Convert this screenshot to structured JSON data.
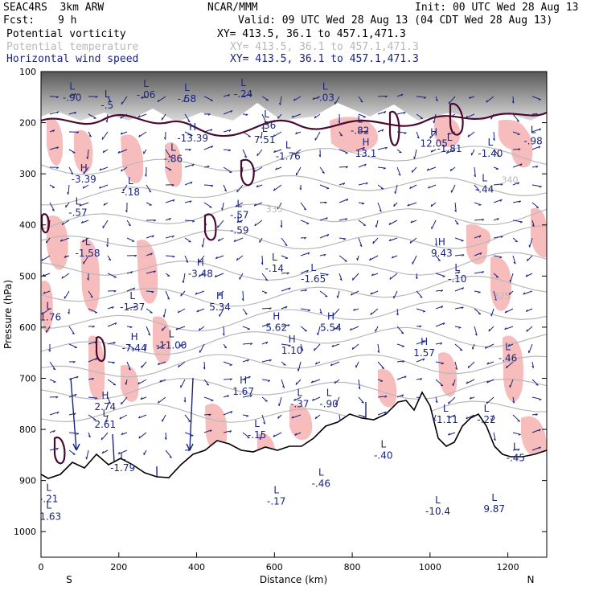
{
  "header": {
    "model": "SEAC4RS  3km ARW",
    "center": "NCAR/MMM",
    "init": "Init: 00 UTC Wed 28 Aug 13",
    "fcst_label": "Fcst:",
    "fcst_value": "9 h",
    "valid": "Valid: 09 UTC Wed 28 Aug 13 (04 CDT Wed 28 Aug 13)"
  },
  "fields": [
    {
      "name": "Potential vorticity",
      "xy": "XY= 413.5, 36.1 to 457.1,471.3",
      "color": "#000000"
    },
    {
      "name": "Potential temperature",
      "xy": "XY= 413.5, 36.1 to 457.1,471.3",
      "color": "#b8b8b8"
    },
    {
      "name": "Horizontal wind speed",
      "xy": "XY= 413.5, 36.1 to 457.1,471.3",
      "color": "#1a237e"
    }
  ],
  "chart_data": {
    "type": "heatmap",
    "xlabel": "Distance (km)",
    "ylabel": "Pressure (hPa)",
    "xlim": [
      0,
      1300
    ],
    "ylim": [
      1050,
      100
    ],
    "x_ticks": [
      0,
      200,
      400,
      600,
      800,
      1000,
      1200
    ],
    "x_tick_labels": [
      "0",
      "200",
      "400",
      "600",
      "800",
      "1000",
      "1200"
    ],
    "y_ticks": [
      100,
      200,
      300,
      400,
      500,
      600,
      700,
      800,
      900,
      1000
    ],
    "y_tick_labels": [
      "100",
      "200",
      "300",
      "400",
      "500",
      "600",
      "700",
      "800",
      "900",
      "1000"
    ],
    "x_end_labels": {
      "left": "S",
      "right": "N"
    },
    "colors": {
      "pv_shade": "#f7bcbc",
      "theta": "#b8b8b8",
      "wind": "#1a237e",
      "pv_contour": "#4a0a30",
      "terrain": "#000000"
    },
    "theta_labels": [
      {
        "x": 1205,
        "p": 318,
        "text": "340"
      },
      {
        "x": 600,
        "p": 375,
        "text": "335"
      },
      {
        "x": 1185,
        "p": 545,
        "text": "325"
      }
    ],
    "extrema": [
      {
        "type": "L",
        "x": 80,
        "p": 135,
        "value": "-.90"
      },
      {
        "type": "L",
        "x": 170,
        "p": 150,
        "value": "-.5"
      },
      {
        "type": "L",
        "x": 270,
        "p": 130,
        "value": "-.06"
      },
      {
        "type": "L",
        "x": 375,
        "p": 138,
        "value": "-.58"
      },
      {
        "type": "L",
        "x": 520,
        "p": 128,
        "value": "-.24"
      },
      {
        "type": "L",
        "x": 730,
        "p": 135,
        "value": "-.03"
      },
      {
        "type": "L",
        "x": 580,
        "p": 190,
        "value": "-.36"
      },
      {
        "type": "L",
        "x": 575,
        "p": 218,
        "value": "7.51"
      },
      {
        "type": "H",
        "x": 390,
        "p": 215,
        "value": "-13.39"
      },
      {
        "type": "L",
        "x": 340,
        "p": 255,
        "value": "-.86"
      },
      {
        "type": "L",
        "x": 635,
        "p": 250,
        "value": "-1.76"
      },
      {
        "type": "L",
        "x": 820,
        "p": 200,
        "value": "-.82"
      },
      {
        "type": "H",
        "x": 835,
        "p": 245,
        "value": "13.1"
      },
      {
        "type": "H",
        "x": 1010,
        "p": 225,
        "value": "12.05"
      },
      {
        "type": "L",
        "x": 1050,
        "p": 235,
        "value": "-1.81"
      },
      {
        "type": "L",
        "x": 1155,
        "p": 245,
        "value": "-1.40"
      },
      {
        "type": "L",
        "x": 1265,
        "p": 220,
        "value": "-.98"
      },
      {
        "type": "H",
        "x": 110,
        "p": 295,
        "value": "-3.39"
      },
      {
        "type": "L",
        "x": 230,
        "p": 320,
        "value": "-.18"
      },
      {
        "type": "L",
        "x": 1140,
        "p": 315,
        "value": "-.44"
      },
      {
        "type": "L",
        "x": 510,
        "p": 365,
        "value": "-.57"
      },
      {
        "type": "L",
        "x": 510,
        "p": 395,
        "value": "-.59"
      },
      {
        "type": "L",
        "x": 95,
        "p": 360,
        "value": "-.57"
      },
      {
        "type": "L",
        "x": 120,
        "p": 440,
        "value": "-1.58"
      },
      {
        "type": "H",
        "x": 410,
        "p": 480,
        "value": "-3.48"
      },
      {
        "type": "L",
        "x": 600,
        "p": 470,
        "value": "-.14"
      },
      {
        "type": "L",
        "x": 700,
        "p": 490,
        "value": "-1.65"
      },
      {
        "type": "H",
        "x": 1030,
        "p": 440,
        "value": "9.43"
      },
      {
        "type": "L",
        "x": 1070,
        "p": 490,
        "value": "-.10"
      },
      {
        "type": "L",
        "x": 235,
        "p": 545,
        "value": "-1.37"
      },
      {
        "type": "H",
        "x": 460,
        "p": 545,
        "value": "5.34"
      },
      {
        "type": "L",
        "x": 20,
        "p": 565,
        "value": "-1.76"
      },
      {
        "type": "H",
        "x": 605,
        "p": 585,
        "value": "5.62"
      },
      {
        "type": "H",
        "x": 745,
        "p": 585,
        "value": "5.54"
      },
      {
        "type": "H",
        "x": 645,
        "p": 630,
        "value": "1.10"
      },
      {
        "type": "H",
        "x": 240,
        "p": 625,
        "value": "-7.44"
      },
      {
        "type": "L",
        "x": 335,
        "p": 620,
        "value": "-11.00"
      },
      {
        "type": "H",
        "x": 985,
        "p": 635,
        "value": "1.57"
      },
      {
        "type": "L",
        "x": 1200,
        "p": 645,
        "value": "-.46"
      },
      {
        "type": "H",
        "x": 520,
        "p": 710,
        "value": "1.67"
      },
      {
        "type": "L",
        "x": 665,
        "p": 735,
        "value": "-.37"
      },
      {
        "type": "L",
        "x": 740,
        "p": 735,
        "value": "-.90"
      },
      {
        "type": "H",
        "x": 165,
        "p": 740,
        "value": "2.74"
      },
      {
        "type": "L",
        "x": 165,
        "p": 775,
        "value": "2.61"
      },
      {
        "type": "L",
        "x": 555,
        "p": 795,
        "value": "-.15"
      },
      {
        "type": "L",
        "x": 1040,
        "p": 765,
        "value": "-1.11"
      },
      {
        "type": "L",
        "x": 1145,
        "p": 765,
        "value": "-.22"
      },
      {
        "type": "L",
        "x": 1220,
        "p": 840,
        "value": "-.45"
      },
      {
        "type": "L",
        "x": 210,
        "p": 860,
        "value": "-1.79"
      },
      {
        "type": "L",
        "x": 20,
        "p": 920,
        "value": "-.21"
      },
      {
        "type": "L",
        "x": 20,
        "p": 955,
        "value": "-1.63"
      },
      {
        "type": "L",
        "x": 1020,
        "p": 945,
        "value": "-10.4"
      },
      {
        "type": "L",
        "x": 1165,
        "p": 940,
        "value": "9.87"
      },
      {
        "type": "L",
        "x": 605,
        "p": 925,
        "value": "-.17"
      },
      {
        "type": "L",
        "x": 720,
        "p": 890,
        "value": "-.46"
      },
      {
        "type": "L",
        "x": 880,
        "p": 835,
        "value": "-.40"
      }
    ]
  }
}
